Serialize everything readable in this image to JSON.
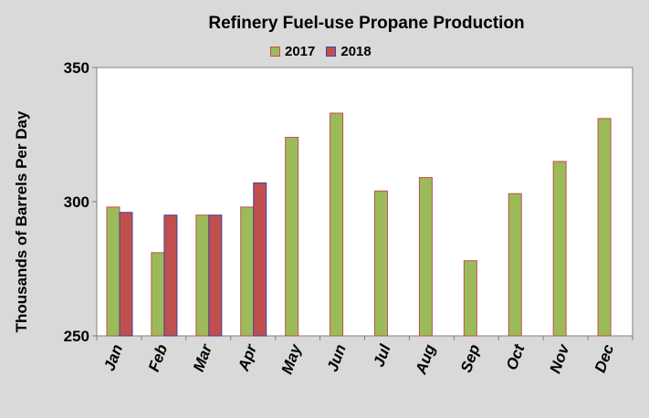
{
  "chart_data": {
    "type": "bar",
    "title": "Refinery Fuel-use Propane Production",
    "ylabel": "Thousands of Barrels Per Day",
    "xlabel": "",
    "ylim": [
      250,
      350
    ],
    "yticks": [
      "250",
      "300",
      "350"
    ],
    "grid": false,
    "legend_position": "top",
    "categories": [
      "Jan",
      "Feb",
      "Mar",
      "Apr",
      "May",
      "Jun",
      "Jul",
      "Aug",
      "Sep",
      "Oct",
      "Nov",
      "Dec"
    ],
    "series": [
      {
        "name": "2017",
        "color": "#9bbb59",
        "edge": "#c0504d",
        "values": [
          298,
          281,
          295,
          298,
          324,
          333,
          304,
          309,
          278,
          303,
          315,
          331
        ]
      },
      {
        "name": "2018",
        "color": "#c0504d",
        "edge": "#4040a0",
        "values": [
          296,
          295,
          295,
          307,
          null,
          null,
          null,
          null,
          null,
          null,
          null,
          null
        ]
      }
    ]
  }
}
